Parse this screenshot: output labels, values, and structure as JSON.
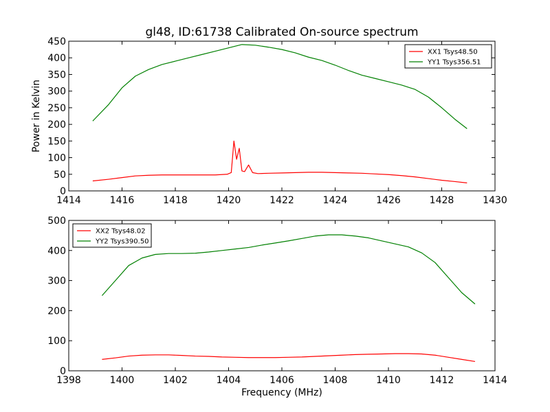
{
  "figure": {
    "title": "gl48, ID:61738 Calibrated On-source spectrum"
  },
  "chart_data": [
    {
      "type": "line",
      "ylabel": "Power in Kelvin",
      "xlabel": "",
      "xlim": [
        1414,
        1430
      ],
      "ylim": [
        0,
        450
      ],
      "xticks": [
        "1414",
        "1416",
        "1418",
        "1420",
        "1422",
        "1424",
        "1426",
        "1428",
        "1430"
      ],
      "yticks": [
        "0",
        "50",
        "100",
        "150",
        "200",
        "250",
        "300",
        "350",
        "400",
        "450"
      ],
      "legend_position": "top-right",
      "series": [
        {
          "name": "XX1 Tsys48.50",
          "color": "#ff0000",
          "x": [
            1414.9,
            1415.5,
            1416,
            1416.5,
            1417,
            1417.5,
            1418,
            1418.5,
            1419,
            1419.5,
            1419.95,
            1420.1,
            1420.2,
            1420.3,
            1420.4,
            1420.5,
            1420.6,
            1420.75,
            1420.9,
            1421.1,
            1421.5,
            1422,
            1422.5,
            1423,
            1423.5,
            1424,
            1424.5,
            1425,
            1425.5,
            1426,
            1426.5,
            1427,
            1427.5,
            1428,
            1428.5,
            1428.95
          ],
          "y": [
            30,
            35,
            40,
            45,
            47,
            48,
            48,
            48,
            48,
            48,
            50,
            55,
            150,
            95,
            128,
            60,
            58,
            78,
            55,
            52,
            53,
            54,
            55,
            56,
            56,
            55,
            54,
            53,
            51,
            49,
            46,
            42,
            37,
            32,
            28,
            24
          ]
        },
        {
          "name": "YY1 Tsys356.51",
          "color": "#008000",
          "x": [
            1414.9,
            1415.5,
            1416,
            1416.5,
            1417,
            1417.5,
            1418,
            1418.5,
            1419,
            1419.5,
            1420,
            1420.5,
            1421,
            1421.5,
            1422,
            1422.5,
            1423,
            1423.5,
            1424,
            1424.5,
            1425,
            1425.5,
            1426,
            1426.5,
            1427,
            1427.5,
            1428,
            1428.5,
            1428.95
          ],
          "y": [
            210,
            260,
            310,
            345,
            365,
            380,
            390,
            400,
            410,
            420,
            430,
            440,
            438,
            432,
            425,
            415,
            402,
            392,
            378,
            362,
            348,
            338,
            328,
            318,
            305,
            282,
            250,
            215,
            187
          ]
        }
      ]
    },
    {
      "type": "line",
      "ylabel": "",
      "xlabel": "Frequency (MHz)",
      "xlim": [
        1398,
        1414
      ],
      "ylim": [
        0,
        500
      ],
      "xticks": [
        "1398",
        "1400",
        "1402",
        "1404",
        "1406",
        "1408",
        "1410",
        "1412",
        "1414"
      ],
      "yticks": [
        "0",
        "100",
        "200",
        "300",
        "400",
        "500"
      ],
      "legend_position": "top-left",
      "series": [
        {
          "name": "XX2 Tsys48.02",
          "color": "#ff0000",
          "x": [
            1399.25,
            1399.75,
            1400.25,
            1400.75,
            1401.25,
            1401.75,
            1402.25,
            1402.75,
            1403.25,
            1403.75,
            1404.25,
            1404.75,
            1405.25,
            1405.75,
            1406.25,
            1406.75,
            1407.25,
            1407.75,
            1408.25,
            1408.75,
            1409.25,
            1409.75,
            1410.25,
            1410.75,
            1411.25,
            1411.75,
            1412.25,
            1412.75,
            1413.25
          ],
          "y": [
            38,
            43,
            49,
            52,
            53,
            53,
            51,
            49,
            48,
            46,
            45,
            44,
            44,
            44,
            45,
            46,
            48,
            50,
            52,
            54,
            55,
            56,
            57,
            57,
            56,
            52,
            45,
            38,
            31
          ]
        },
        {
          "name": "YY2 Tsys390.50",
          "color": "#008000",
          "x": [
            1399.25,
            1399.75,
            1400.25,
            1400.75,
            1401.25,
            1401.75,
            1402.25,
            1402.75,
            1403.25,
            1403.75,
            1404.25,
            1404.75,
            1405.25,
            1405.75,
            1406.25,
            1406.75,
            1407.25,
            1407.75,
            1408.25,
            1408.75,
            1409.25,
            1409.75,
            1410.25,
            1410.75,
            1411.25,
            1411.75,
            1412.25,
            1412.75,
            1413.25
          ],
          "y": [
            250,
            300,
            350,
            375,
            387,
            390,
            390,
            391,
            395,
            400,
            405,
            410,
            418,
            425,
            432,
            440,
            448,
            452,
            452,
            448,
            442,
            432,
            422,
            412,
            392,
            360,
            310,
            260,
            222
          ]
        }
      ]
    }
  ]
}
